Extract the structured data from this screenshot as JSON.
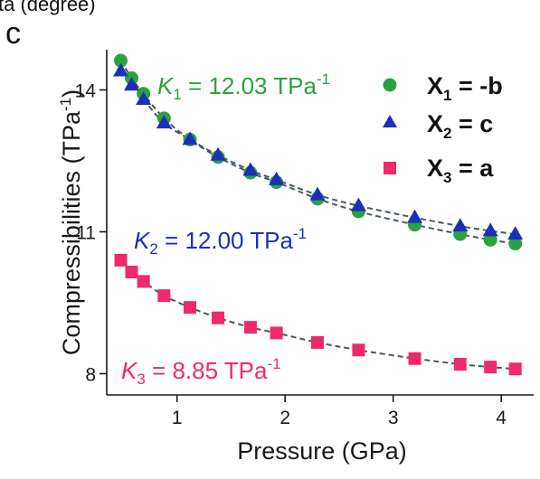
{
  "colors": {
    "green": "#2aa33e",
    "blue": "#1d2fb8",
    "pink": "#ee2a6b",
    "fit": "#4a5860",
    "axis": "#1a1a1a"
  },
  "header": {
    "clipped_text": "ta (degree)",
    "panel_label": "c"
  },
  "chart_data": {
    "type": "scatter",
    "title": "",
    "xlabel": "Pressure (GPa)",
    "ylabel": "Compressibilities (TPa",
    "ylabel_sup": "-1",
    "ylabel_close": ")",
    "xlim": [
      0.35,
      4.3
    ],
    "ylim": [
      7.55,
      14.85
    ],
    "xticks": [
      1,
      2,
      3,
      4
    ],
    "yticks": [
      8,
      11,
      14
    ],
    "series": [
      {
        "name": "X1 = -b",
        "legend": {
          "var": "X",
          "sub": "1",
          "rest": " = -b"
        },
        "marker": "circle",
        "color": "#2aa33e",
        "x": [
          0.48,
          0.58,
          0.69,
          0.88,
          1.12,
          1.38,
          1.68,
          1.92,
          2.3,
          2.68,
          3.2,
          3.62,
          3.9,
          4.13
        ],
        "y": [
          14.62,
          14.25,
          13.92,
          13.4,
          12.95,
          12.58,
          12.25,
          12.05,
          11.7,
          11.43,
          11.15,
          10.95,
          10.83,
          10.75
        ],
        "fit": {
          "K": 12.03
        }
      },
      {
        "name": "X2 = c",
        "legend": {
          "var": "X",
          "sub": "2",
          "rest": " = c"
        },
        "marker": "triangle",
        "color": "#1d2fb8",
        "x": [
          0.48,
          0.58,
          0.69,
          0.88,
          1.12,
          1.38,
          1.68,
          1.92,
          2.3,
          2.68,
          3.2,
          3.62,
          3.9,
          4.13
        ],
        "y": [
          14.4,
          14.1,
          13.8,
          13.3,
          12.95,
          12.62,
          12.3,
          12.1,
          11.78,
          11.55,
          11.3,
          11.12,
          11.02,
          10.95
        ],
        "fit": {
          "K": 12.0
        }
      },
      {
        "name": "X3 = a",
        "legend": {
          "var": "X",
          "sub": "3",
          "rest": " = a"
        },
        "marker": "square",
        "color": "#ee2a6b",
        "x": [
          0.48,
          0.58,
          0.69,
          0.88,
          1.12,
          1.38,
          1.68,
          1.92,
          2.3,
          2.68,
          3.2,
          3.62,
          3.9,
          4.13
        ],
        "y": [
          10.4,
          10.15,
          9.95,
          9.65,
          9.4,
          9.18,
          8.98,
          8.86,
          8.66,
          8.5,
          8.32,
          8.2,
          8.14,
          8.1
        ],
        "fit": {
          "K": 8.85
        }
      }
    ],
    "annotations": [
      {
        "var": "K",
        "sub": "1",
        "text": " = 12.03 TPa",
        "sup": "-1",
        "color": "#2aa33e"
      },
      {
        "var": "K",
        "sub": "2",
        "text": " = 12.00 TPa",
        "sup": "-1",
        "color": "#1d2fb8"
      },
      {
        "var": "K",
        "sub": "3",
        "text": " = 8.85 TPa",
        "sup": "-1",
        "color": "#ee2a6b"
      }
    ]
  }
}
